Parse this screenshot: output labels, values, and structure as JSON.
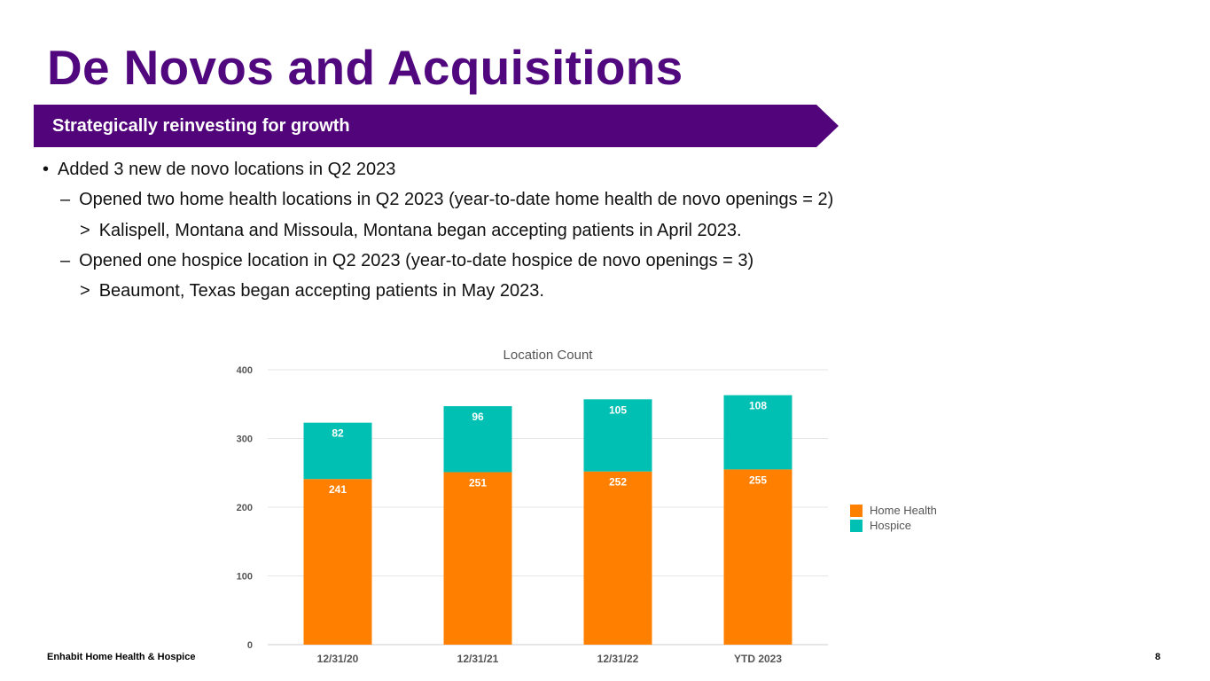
{
  "slide": {
    "title": "De Novos and Acquisitions",
    "banner": "Strategically reinvesting for growth",
    "bullets": [
      {
        "marker": "•",
        "text": "Added 3 new de novo locations in Q2 2023"
      },
      {
        "marker": "–",
        "text": "Opened two home health locations in Q2 2023 (year-to-date home health de novo openings = 2)"
      },
      {
        "marker": ">",
        "text": "Kalispell, Montana and Missoula, Montana began accepting patients in April 2023."
      },
      {
        "marker": "–",
        "text": "Opened one hospice location in Q2 2023 (year-to-date hospice de novo openings = 3)"
      },
      {
        "marker": ">",
        "text": "Beaumont, Texas began accepting patients in May 2023."
      }
    ],
    "footer": "Enhabit Home Health & Hospice",
    "page_number": "8"
  },
  "colors": {
    "title": "#51087e",
    "banner": "#52057b",
    "home_health": "#ff8000",
    "hospice": "#00bfb3"
  },
  "chart_data": {
    "type": "bar",
    "stacked": true,
    "title": "Location Count",
    "categories": [
      "12/31/20",
      "12/31/21",
      "12/31/22",
      "YTD 2023"
    ],
    "series": [
      {
        "name": "Home Health",
        "values": [
          241,
          251,
          252,
          255
        ]
      },
      {
        "name": "Hospice",
        "values": [
          82,
          96,
          105,
          108
        ]
      }
    ],
    "yticks": [
      0,
      100,
      200,
      300,
      400
    ],
    "ylim": [
      0,
      400
    ],
    "grid": true,
    "legend": "right"
  }
}
